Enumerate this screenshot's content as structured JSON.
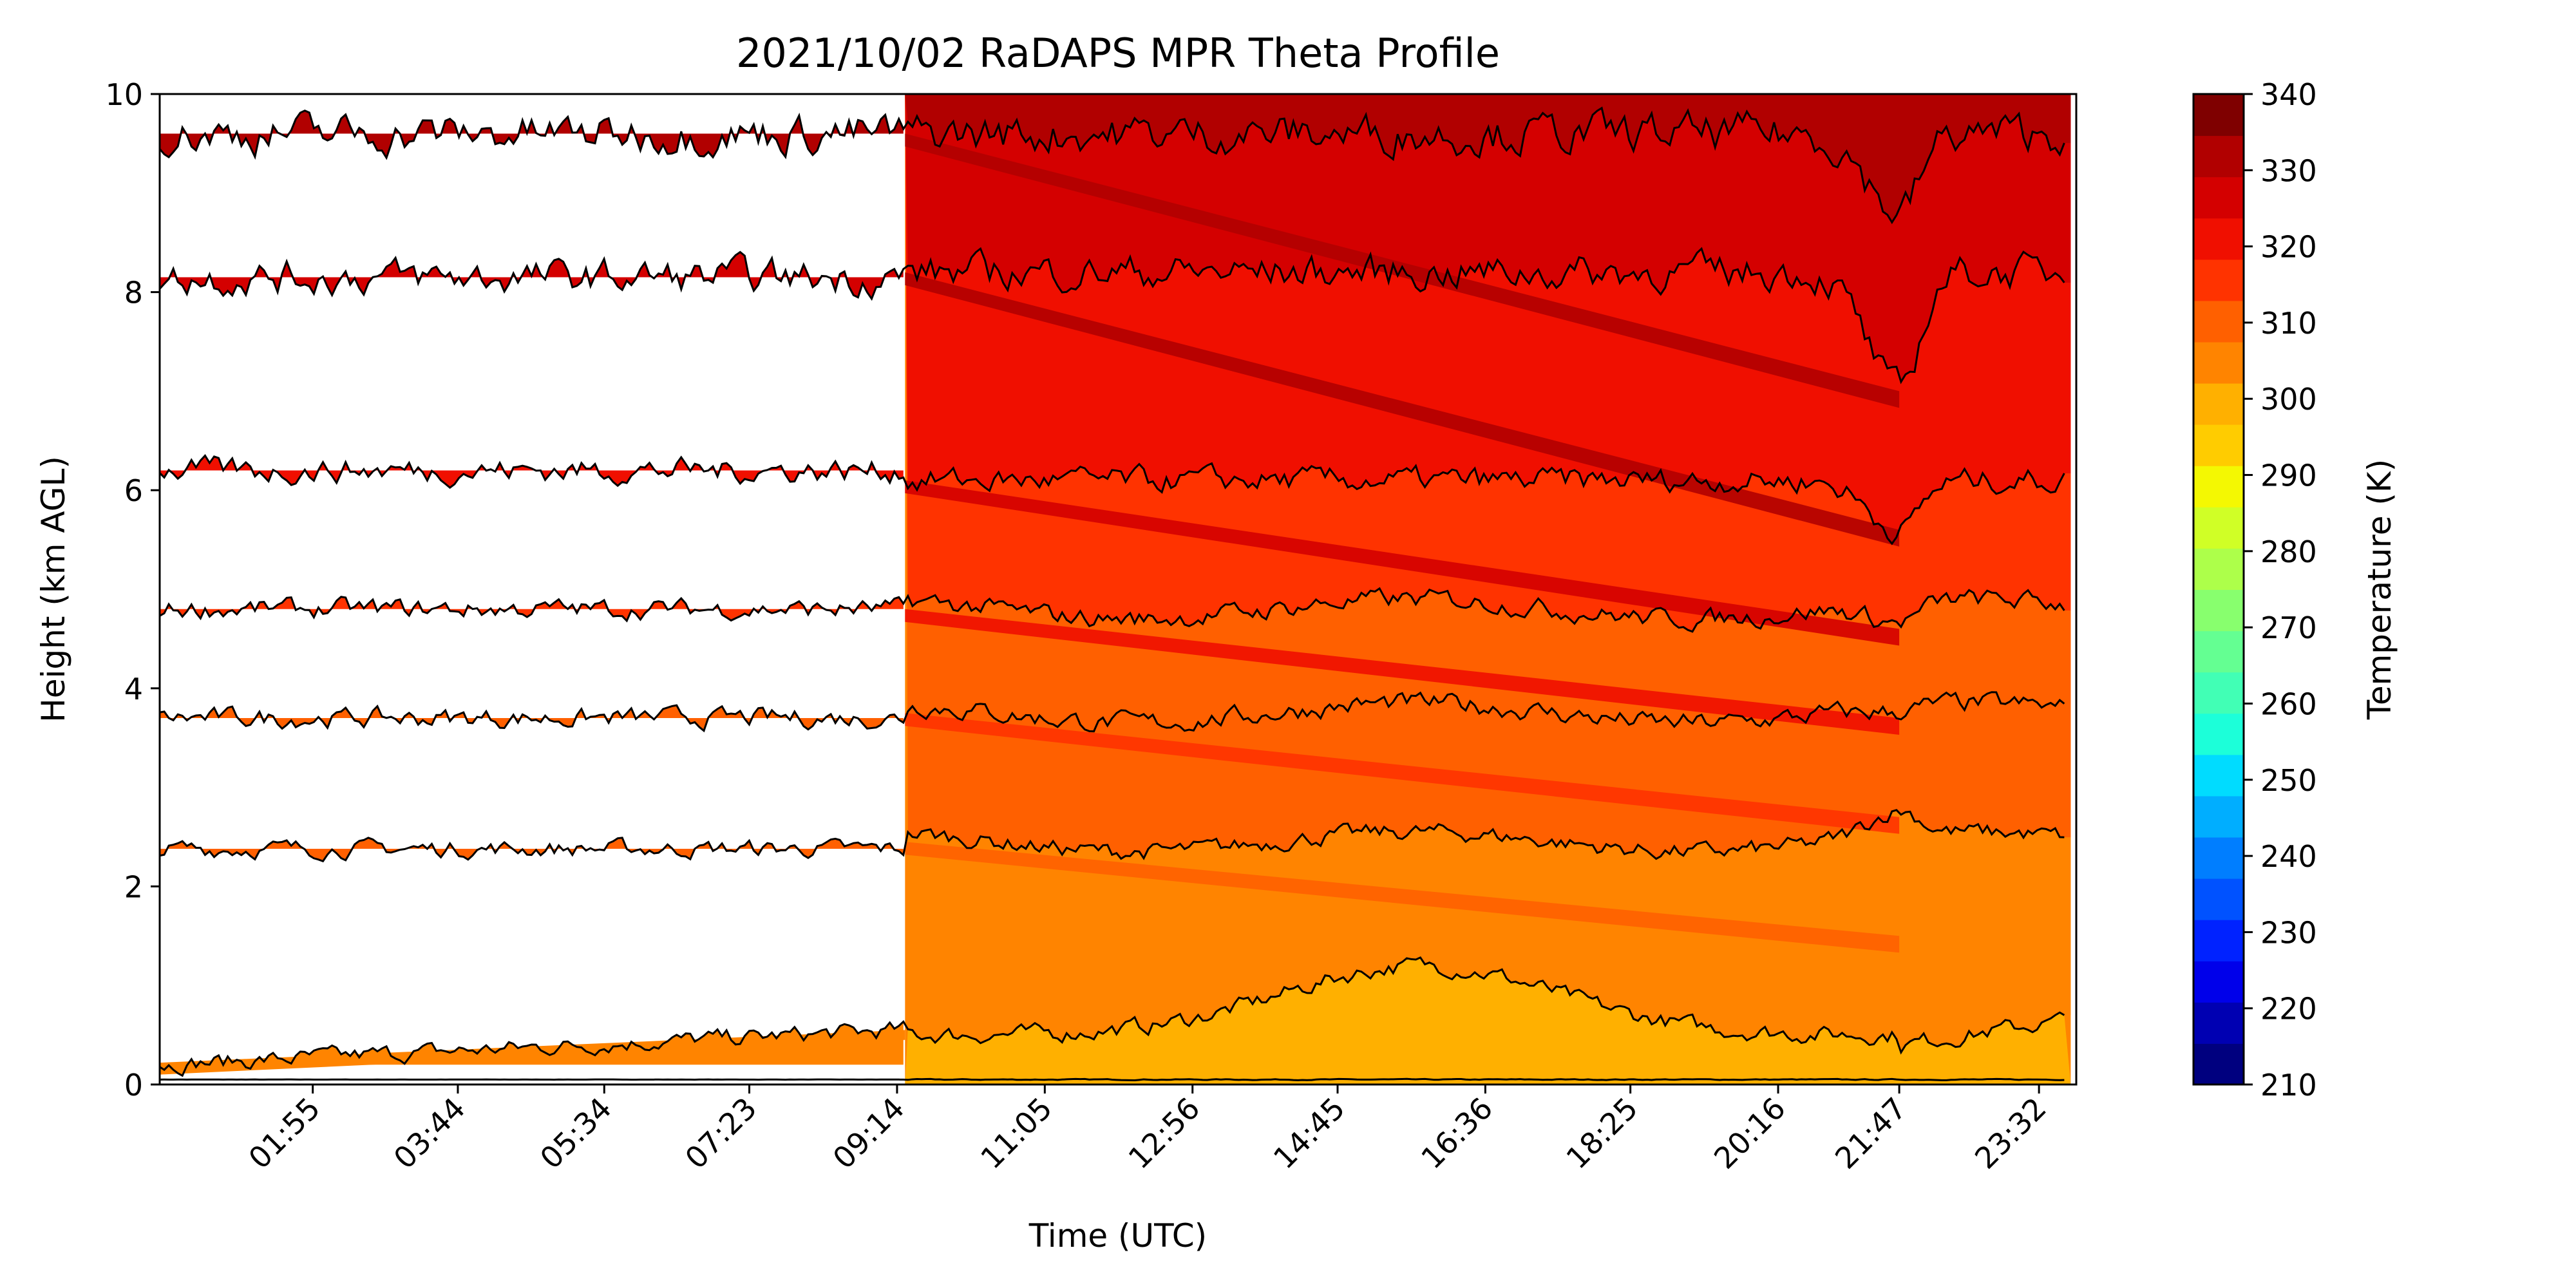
{
  "chart_data": {
    "type": "area",
    "title": "2021/10/02 RaDAPS MPR Theta Profile",
    "xlabel": "Time (UTC)",
    "ylabel": "Height (km AGL)",
    "x_range_utc": [
      "00:00",
      "24:00"
    ],
    "ylim": [
      0,
      10
    ],
    "y_ticks": [
      0,
      2,
      4,
      6,
      8,
      10
    ],
    "x_tick_labels": [
      "01:55",
      "03:44",
      "05:34",
      "07:23",
      "09:14",
      "11:05",
      "12:56",
      "14:45",
      "16:36",
      "18:25",
      "20:16",
      "21:47",
      "23:32"
    ],
    "data_gap_before_utc": "09:20",
    "colorbar": {
      "label": "Temperature (K)",
      "range": [
        210,
        340
      ],
      "ticks": [
        210,
        220,
        230,
        240,
        250,
        260,
        270,
        280,
        290,
        300,
        310,
        320,
        330,
        340
      ],
      "colors": [
        "#00007f",
        "#0000b2",
        "#0000ea",
        "#0022ff",
        "#0052ff",
        "#007eff",
        "#00aeff",
        "#00dcff",
        "#1cffd9",
        "#41ffb5",
        "#64ff92",
        "#88ff6e",
        "#adff4a",
        "#d0ff26",
        "#f4f802",
        "#ffcc00",
        "#ffb000",
        "#ff8400",
        "#ff6000",
        "#ff3300",
        "#f00f00",
        "#d40000",
        "#b10000",
        "#7f0000"
      ]
    },
    "contour_levels_km": [
      {
        "theta_K": 295,
        "height_before_gap": 0.05,
        "height_after_gap": 0.05
      },
      {
        "theta_K": 300,
        "height_before_gap": 0.2,
        "height_after_gap": 0.55,
        "peak_after": 1.2
      },
      {
        "theta_K": 305,
        "height_before_gap": 2.38,
        "height_after_gap": 2.45
      },
      {
        "theta_K": 310,
        "height_before_gap": 3.7,
        "height_after_gap": 3.75
      },
      {
        "theta_K": 315,
        "height_before_gap": 4.8,
        "height_after_gap": 4.8
      },
      {
        "theta_K": 320,
        "height_before_gap": 6.2,
        "height_after_gap": 6.1
      },
      {
        "theta_K": 325,
        "height_before_gap": 8.15,
        "height_after_gap": 8.2
      },
      {
        "theta_K": 330,
        "height_before_gap": 9.6,
        "height_after_gap": 9.6
      }
    ],
    "dip_time_utc": "21:47",
    "dip_min_heights_km": [
      0.3,
      1.5,
      2.7,
      3.7,
      4.6,
      5.6,
      7.0,
      8.8
    ]
  }
}
